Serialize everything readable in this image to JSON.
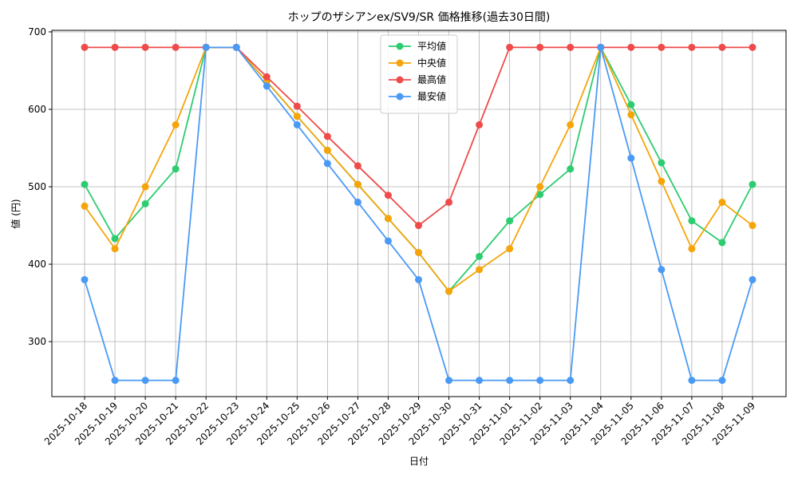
{
  "chart_data": {
    "type": "line",
    "title": "ホップのザシアンex/SV9/SR 価格推移(過去30日間)",
    "x_label": "日付",
    "y_label": "値 (円)",
    "categories": [
      "2025-10-18",
      "2025-10-19",
      "2025-10-20",
      "2025-10-21",
      "2025-10-22",
      "2025-10-23",
      "2025-10-24",
      "2025-10-25",
      "2025-10-26",
      "2025-10-27",
      "2025-10-28",
      "2025-10-29",
      "2025-10-30",
      "2025-10-31",
      "2025-11-01",
      "2025-11-02",
      "2025-11-03",
      "2025-11-04",
      "2025-11-05",
      "2025-11-06",
      "2025-11-07",
      "2025-11-08",
      "2025-11-09"
    ],
    "series": [
      {
        "name": "平均値",
        "color": "#2ecc71",
        "values": [
          503,
          433,
          478,
          523,
          680,
          680,
          636,
          591,
          547,
          503,
          459,
          415,
          365,
          410,
          456,
          490,
          523,
          680,
          606,
          531,
          456,
          428,
          503
        ]
      },
      {
        "name": "中央値",
        "color": "#f5a50a",
        "values": [
          475,
          420,
          500,
          580,
          680,
          680,
          636,
          591,
          547,
          503,
          459,
          415,
          365,
          393,
          420,
          500,
          580,
          680,
          593,
          507,
          420,
          480,
          450
        ]
      },
      {
        "name": "最高値",
        "color": "#ef4b4b",
        "values": [
          680,
          680,
          680,
          680,
          680,
          680,
          642,
          604,
          565,
          527,
          489,
          450,
          480,
          580,
          680,
          680,
          680,
          680,
          680,
          680,
          680,
          680,
          680
        ]
      },
      {
        "name": "最安値",
        "color": "#4a9af5",
        "values": [
          380,
          250,
          250,
          250,
          680,
          680,
          630,
          580,
          530,
          480,
          430,
          380,
          250,
          250,
          250,
          250,
          250,
          680,
          537,
          393,
          250,
          250,
          380
        ]
      }
    ],
    "ylim": [
      229,
      702
    ],
    "yticks": [
      300,
      400,
      500,
      600,
      700
    ],
    "grid": true,
    "legend": "upper center"
  }
}
